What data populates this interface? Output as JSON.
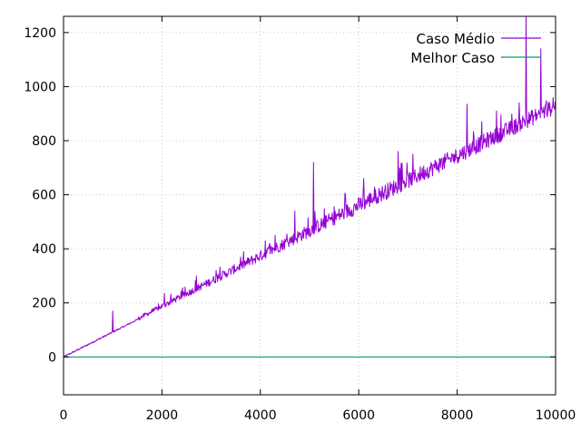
{
  "chart_data": {
    "type": "line",
    "title": "",
    "xlabel": "",
    "ylabel": "",
    "xlim": [
      0,
      10000
    ],
    "ylim": [
      -140,
      1260
    ],
    "x_ticks": [
      0,
      2000,
      4000,
      6000,
      8000,
      10000
    ],
    "y_ticks": [
      0,
      200,
      400,
      600,
      800,
      1000,
      1200
    ],
    "grid": true,
    "legend_position": "top-right",
    "series": [
      {
        "name": "Caso Médio",
        "color": "#9400d3",
        "trend_slope": 0.092,
        "spikes": [
          {
            "x": 700,
            "y": 65
          },
          {
            "x": 1000,
            "y": 170
          },
          {
            "x": 2050,
            "y": 235
          },
          {
            "x": 2700,
            "y": 300
          },
          {
            "x": 3100,
            "y": 320
          },
          {
            "x": 3600,
            "y": 370
          },
          {
            "x": 4100,
            "y": 430
          },
          {
            "x": 4300,
            "y": 450
          },
          {
            "x": 4700,
            "y": 540
          },
          {
            "x": 5080,
            "y": 720
          },
          {
            "x": 6100,
            "y": 660
          },
          {
            "x": 6800,
            "y": 760
          },
          {
            "x": 7100,
            "y": 750
          },
          {
            "x": 8200,
            "y": 935
          },
          {
            "x": 8500,
            "y": 870
          },
          {
            "x": 8800,
            "y": 910
          },
          {
            "x": 9400,
            "y": 1260
          },
          {
            "x": 9700,
            "y": 1140
          },
          {
            "x": 9950,
            "y": 960
          }
        ]
      },
      {
        "name": "Melhor Caso",
        "color": "#009e73",
        "x": [
          0,
          10000
        ],
        "y": [
          0,
          0
        ]
      }
    ]
  }
}
